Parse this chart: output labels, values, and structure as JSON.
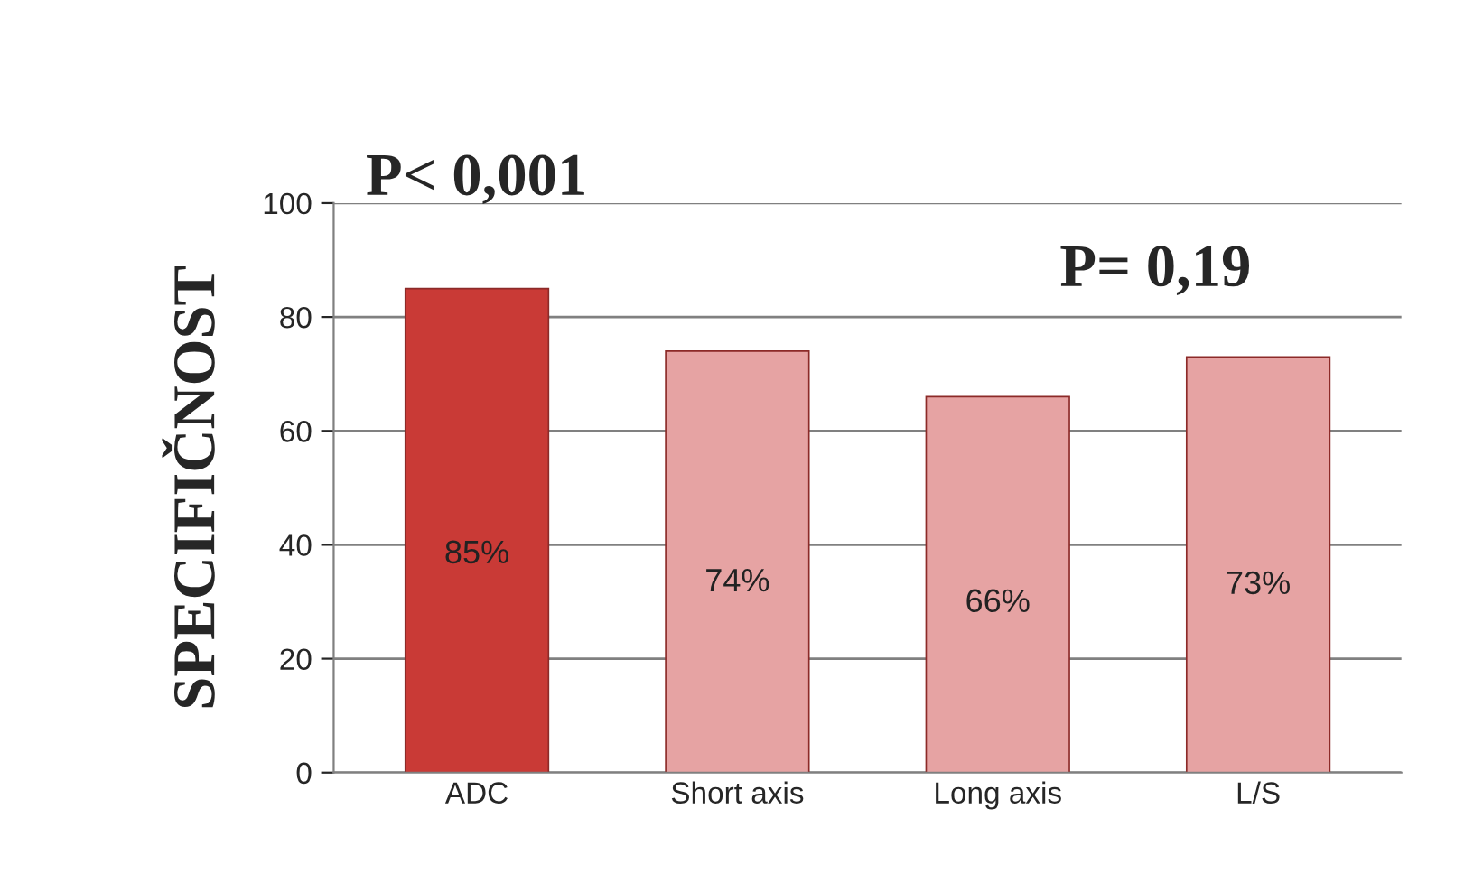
{
  "chart_data": {
    "type": "bar",
    "ylabel": "SPECIFIČNOST",
    "categories": [
      "ADC",
      "Short axis",
      "Long axis",
      "L/S"
    ],
    "values": [
      85,
      74,
      66,
      73
    ],
    "colors": [
      "#c93a36",
      "#e6a3a3",
      "#e6a3a3",
      "#e6a3a3"
    ],
    "value_labels": [
      "85%",
      "74%",
      "66%",
      "73%"
    ],
    "ylim": [
      0,
      100
    ],
    "yticks": [
      0,
      20,
      40,
      60,
      80,
      100
    ],
    "grid": "y",
    "annotations": [
      "P< 0,001",
      "P= 0,19"
    ]
  }
}
